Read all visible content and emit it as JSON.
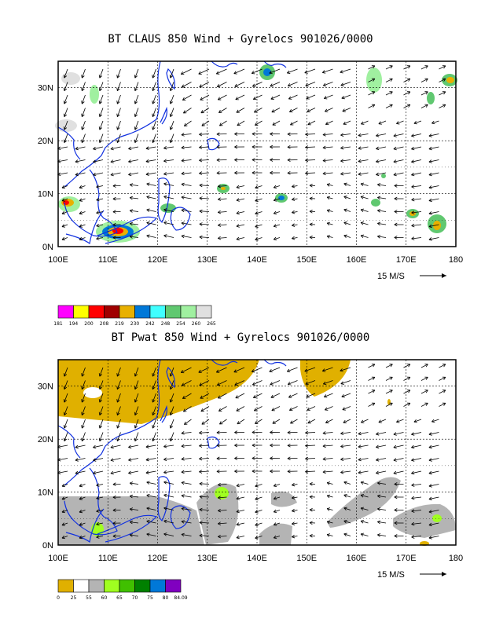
{
  "panels": [
    {
      "title": "BT CLAUS 850 Wind + Gyrelocs 901026/0000",
      "x_ticks": [
        "100E",
        "110E",
        "120E",
        "130E",
        "140E",
        "150E",
        "160E",
        "170E",
        "180"
      ],
      "y_ticks": [
        "30N",
        "20N",
        "10N",
        "0N"
      ],
      "ref_vector": "15 M/S",
      "legend": {
        "colors": [
          "#ff00ff",
          "#ffff00",
          "#ff0000",
          "#a00000",
          "#e8b000",
          "#0078d8",
          "#40ffff",
          "#60c870",
          "#a0f0a0",
          "#e0e0e0"
        ],
        "labels": [
          "181",
          "194",
          "200",
          "208",
          "219",
          "230",
          "242",
          "248",
          "254",
          "260",
          "265"
        ]
      }
    },
    {
      "title": "BT Pwat 850 Wind + Gyrelocs 901026/0000",
      "x_ticks": [
        "100E",
        "110E",
        "120E",
        "130E",
        "140E",
        "150E",
        "160E",
        "170E",
        "180"
      ],
      "y_ticks": [
        "30N",
        "20N",
        "10N",
        "0N"
      ],
      "ref_vector": "15 M/S",
      "legend": {
        "colors": [
          "#e0b000",
          "#ffffff",
          "#b4b4b4",
          "#a0ff20",
          "#40c000",
          "#008000",
          "#0078d8",
          "#8000c0"
        ],
        "labels": [
          "0",
          "25",
          "55",
          "60",
          "65",
          "70",
          "75",
          "80",
          "84.09"
        ]
      }
    }
  ]
}
